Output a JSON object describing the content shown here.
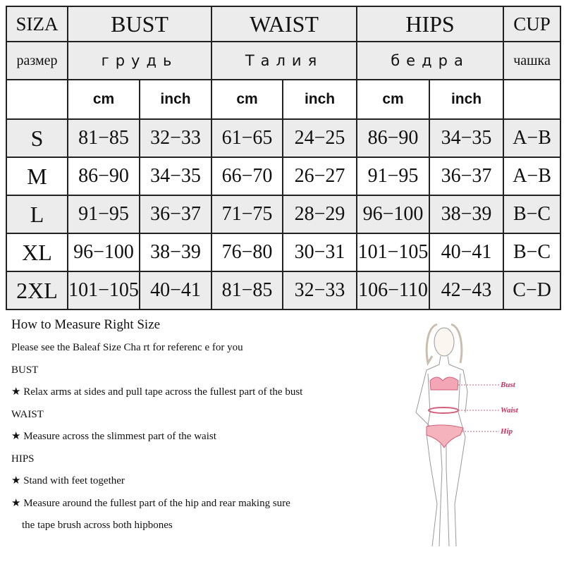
{
  "table": {
    "header": {
      "size": "SIZA",
      "bust": "BUST",
      "waist": "WAIST",
      "hips": "HIPS",
      "cup": "CUP"
    },
    "header_ru": {
      "size": "размер",
      "bust": "грудь",
      "waist": "Талия",
      "hips": "бедра",
      "cup": "чашка"
    },
    "units": [
      "cm",
      "inch",
      "cm",
      "inch",
      "cm",
      "inch"
    ],
    "rows": [
      {
        "size": "S",
        "bust_cm": "81−85",
        "bust_in": "32−33",
        "waist_cm": "61−65",
        "waist_in": "24−25",
        "hips_cm": "86−90",
        "hips_in": "34−35",
        "cup": "A−B"
      },
      {
        "size": "M",
        "bust_cm": "86−90",
        "bust_in": "34−35",
        "waist_cm": "66−70",
        "waist_in": "26−27",
        "hips_cm": "91−95",
        "hips_in": "36−37",
        "cup": "A−B"
      },
      {
        "size": "L",
        "bust_cm": "91−95",
        "bust_in": "36−37",
        "waist_cm": "71−75",
        "waist_in": "28−29",
        "hips_cm": "96−100",
        "hips_in": "38−39",
        "cup": "B−C"
      },
      {
        "size": "XL",
        "bust_cm": "96−100",
        "bust_in": "38−39",
        "waist_cm": "76−80",
        "waist_in": "30−31",
        "hips_cm": "101−105",
        "hips_in": "40−41",
        "cup": "B−C"
      },
      {
        "size": "2XL",
        "bust_cm": "101−105",
        "bust_in": "40−41",
        "waist_cm": "81−85",
        "waist_in": "32−33",
        "hips_cm": "106−110",
        "hips_in": "42−43",
        "cup": "C−D"
      }
    ]
  },
  "guide": {
    "title": "How to Measure Right Size",
    "intro": "Please  see  the Baleaf Size Cha rt for referenc e for you",
    "bust_heading": "BUST",
    "bust_tip": "★ Relax arms at sides and pull tape across the fullest part of the bust",
    "waist_heading": "WAIST",
    "waist_tip": "★ Measure across the slimmest part of the waist",
    "hips_heading": "HIPS",
    "hips_tip1": "★ Stand with feet together",
    "hips_tip2": "★ Measure around the fullest part of the hip and rear making sure",
    "hips_tip2_cont": "the tape brush across both hipbones"
  },
  "figure": {
    "labels": {
      "bust": "Bust",
      "waist": "Waist",
      "hip": "Hip"
    },
    "accent": "#c2345e"
  }
}
